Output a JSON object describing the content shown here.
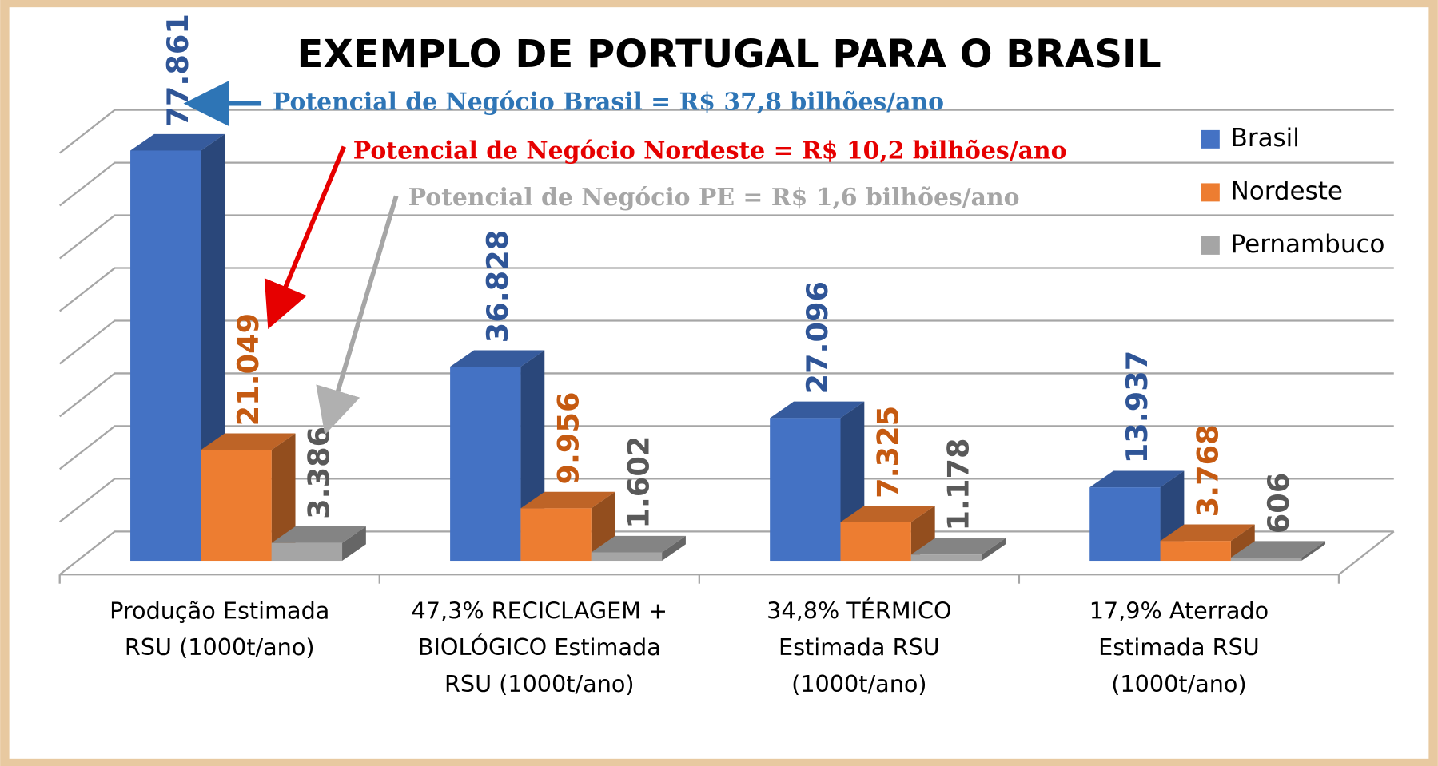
{
  "chart_data": {
    "type": "bar3d",
    "title": "EXEMPLO DE PORTUGAL PARA O BRASIL",
    "annotations": [
      {
        "text": "Potencial de Negócio Brasil = R$ 37,8 bilhões/ano",
        "color": "#2e75b6"
      },
      {
        "text": "Potencial de Negócio Nordeste = R$ 10,2 bilhões/ano",
        "color": "#e60000"
      },
      {
        "text": "Potencial de Negócio PE = R$ 1,6 bilhões/ano",
        "color": "#a6a6a6"
      }
    ],
    "categories": [
      "Produção Estimada\nRSU (1000t/ano)",
      "47,3% RECICLAGEM +\nBIOLÓGICO Estimada\nRSU (1000t/ano)",
      "34,8% TÉRMICO\nEstimada RSU\n(1000t/ano)",
      "17,9% Aterrado\nEstimada RSU\n(1000t/ano)"
    ],
    "series": [
      {
        "name": "Brasil",
        "color": "#4472c4",
        "label_color": "#2f5597",
        "values": [
          77861,
          36828,
          27096,
          13937
        ],
        "value_labels": [
          "77.861",
          "36.828",
          "27.096",
          "13.937"
        ]
      },
      {
        "name": "Nordeste",
        "color": "#ed7d31",
        "label_color": "#c55a11",
        "values": [
          21049,
          9956,
          7325,
          3768
        ],
        "value_labels": [
          "21.049",
          "9.956",
          "7.325",
          "3.768"
        ]
      },
      {
        "name": "Pernambuco",
        "color": "#a5a5a5",
        "label_color": "#595959",
        "values": [
          3386,
          1602,
          1178,
          606
        ],
        "value_labels": [
          "3.386",
          "1.602",
          "1.178",
          "606"
        ]
      }
    ],
    "ylim": [
      0,
      80000
    ],
    "yticks": [
      0,
      10000,
      20000,
      30000,
      40000,
      50000,
      60000,
      70000,
      80000
    ],
    "grid": true,
    "legend": "right"
  }
}
